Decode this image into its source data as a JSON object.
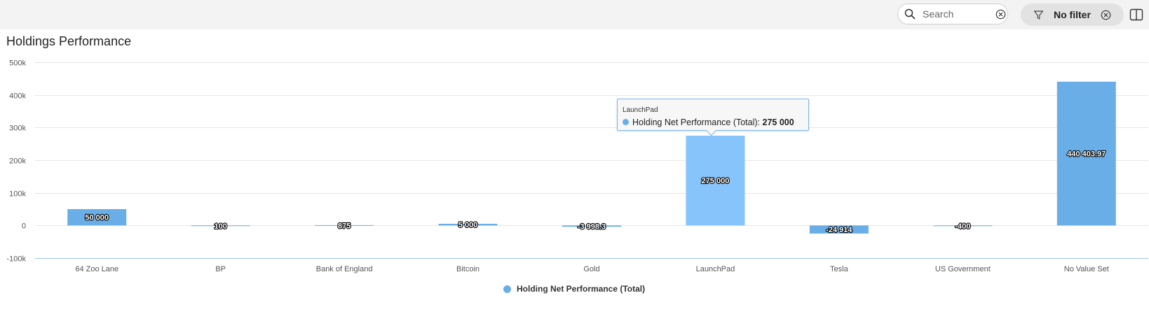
{
  "toolbar": {
    "search": {
      "placeholder": "Search",
      "icon": "search-icon",
      "clear_icon": "clear-icon"
    },
    "filter": {
      "label": "No filter",
      "icon": "filter-icon",
      "clear_icon": "clear-icon"
    },
    "panel_toggle_icon": "panel-toggle-icon"
  },
  "tooltip": {
    "category": "LaunchPad",
    "series_label": "Holding Net Performance (Total): ",
    "value": "275 000"
  },
  "chart_data": {
    "type": "bar",
    "title": "Holdings Performance",
    "categories": [
      "64 Zoo Lane",
      "BP",
      "Bank of England",
      "Bitcoin",
      "Gold",
      "LaunchPad",
      "Tesla",
      "US Government",
      "No Value Set"
    ],
    "series": [
      {
        "name": "Holding Net Performance (Total)",
        "color": "#6aaee8",
        "values": [
          50000,
          100,
          875,
          5000,
          -3998.3,
          275000,
          -24914,
          -400,
          440403.97
        ],
        "data_labels": [
          "50 000",
          "100",
          "875",
          "5 000",
          "-3 998.3",
          "275 000",
          "-24 914",
          "-400",
          "440 403.97"
        ]
      }
    ],
    "highlighted_category": "LaunchPad",
    "highlight_color": "#86c4fb",
    "ylim": [
      -100000,
      500000
    ],
    "yticks": [
      -100000,
      0,
      100000,
      200000,
      300000,
      400000,
      500000
    ],
    "ytick_labels": [
      "-100k",
      "0",
      "100k",
      "200k",
      "300k",
      "400k",
      "500k"
    ],
    "xlabel": "",
    "ylabel": "",
    "grid": true,
    "legend": "bottom-center"
  }
}
